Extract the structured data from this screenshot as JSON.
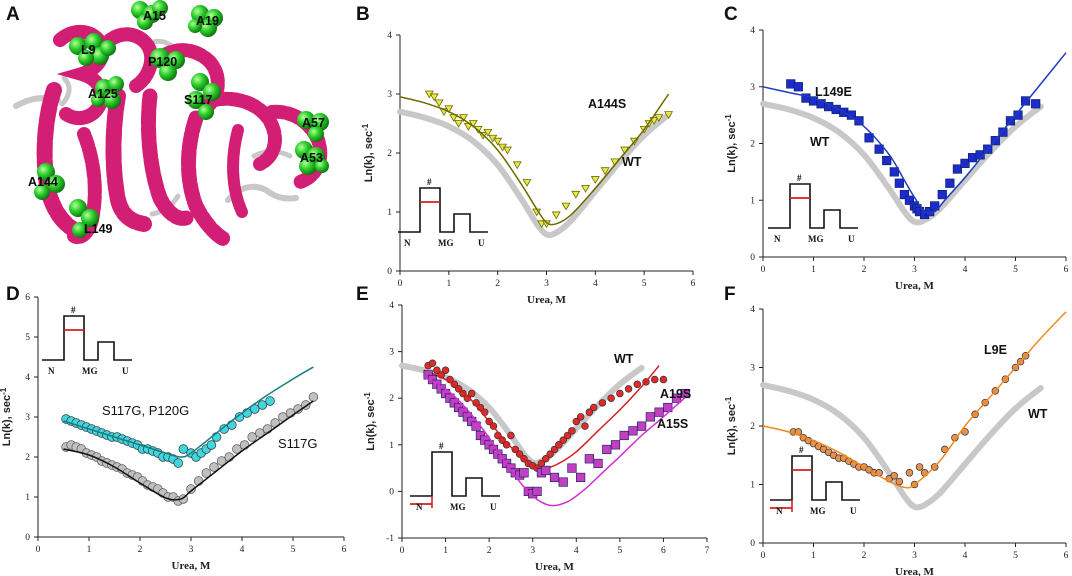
{
  "figure_panels": {
    "a": "A",
    "b": "B",
    "c": "C",
    "d": "D",
    "e": "E",
    "f": "F"
  },
  "structure": {
    "residues": [
      "A15",
      "A19",
      "L9",
      "P120",
      "A125",
      "S117",
      "A57",
      "A53",
      "A144",
      "L149"
    ]
  },
  "inset": {
    "transition": "#",
    "native": "N",
    "molten_globule": "MG",
    "unfolded": "U"
  },
  "colors": {
    "helix": "#d21f75",
    "loop": "#c8c8c8",
    "sphere": "#1fbf1f",
    "wt": "#c8c8c8",
    "b": "#6b6b00",
    "b_fill": "#e8e84a",
    "c": "#1e3cbe",
    "c_fill": "#1c2cc8",
    "d_top": "#1a7f7f",
    "d_top_fill": "#3fd6e0",
    "d_bot": "#111111",
    "d_bot_fill": "#c0c0c0",
    "e_red": "#d42020",
    "e_red_fill": "#e02b2b",
    "e_mag": "#d030d0",
    "e_mag_fill": "#c040c0",
    "f": "#f08a20",
    "f_fill": "#e89050",
    "inset_red": "#d42020"
  },
  "chart_data": [
    {
      "panel": "B",
      "type": "scatter",
      "xlabel": "Urea, M",
      "ylabel": "Ln(k), sec",
      "xlim": [
        0,
        6
      ],
      "ylim": [
        0,
        4
      ],
      "xticks": [
        "0",
        "1",
        "2",
        "3",
        "4",
        "5",
        "6"
      ],
      "yticks": [
        "0",
        "1",
        "2",
        "3",
        "4"
      ],
      "series": [
        {
          "name": "A144S",
          "marker": "triangle-down",
          "x": [
            0.6,
            0.7,
            0.8,
            0.9,
            1.0,
            1.1,
            1.2,
            1.3,
            1.4,
            1.5,
            1.6,
            1.7,
            1.8,
            1.9,
            2.0,
            2.1,
            2.2,
            2.4,
            2.6,
            2.8,
            2.9,
            3.0,
            3.2,
            3.4,
            3.6,
            3.8,
            4.0,
            4.2,
            4.4,
            4.6,
            4.8,
            5.0,
            5.1,
            5.2,
            5.3,
            5.5
          ],
          "y": [
            3.0,
            2.95,
            2.85,
            2.7,
            2.75,
            2.6,
            2.5,
            2.6,
            2.45,
            2.5,
            2.4,
            2.3,
            2.35,
            2.25,
            2.2,
            2.1,
            2.05,
            1.8,
            1.5,
            1.0,
            0.8,
            0.8,
            0.95,
            1.1,
            1.3,
            1.4,
            1.55,
            1.7,
            1.85,
            2.05,
            2.2,
            2.4,
            2.5,
            2.55,
            2.6,
            2.65
          ],
          "fit_x": [
            0,
            0.5,
            1.0,
            1.5,
            2.0,
            2.5,
            2.8,
            3.0,
            3.2,
            3.5,
            4.0,
            4.5,
            5.0,
            5.5
          ],
          "fit_y": [
            2.95,
            2.85,
            2.7,
            2.45,
            2.05,
            1.45,
            1.05,
            0.82,
            0.8,
            0.95,
            1.4,
            1.9,
            2.4,
            3.0
          ]
        },
        {
          "name": "WT",
          "style": "thick-gray",
          "x": [
            0,
            0.5,
            1.0,
            1.5,
            2.0,
            2.5,
            2.8,
            3.0,
            3.2,
            3.5,
            4.0,
            4.5,
            5.0,
            5.5
          ],
          "y": [
            2.7,
            2.6,
            2.45,
            2.2,
            1.8,
            1.2,
            0.8,
            0.62,
            0.65,
            0.85,
            1.35,
            1.85,
            2.3,
            2.65
          ]
        }
      ]
    },
    {
      "panel": "C",
      "type": "scatter",
      "xlabel": "Urea, M",
      "ylabel": "Ln(k), sec",
      "xlim": [
        0,
        6
      ],
      "ylim": [
        0,
        4
      ],
      "xticks": [
        "0",
        "1",
        "2",
        "3",
        "4",
        "5",
        "6"
      ],
      "yticks": [
        "0",
        "1",
        "2",
        "3",
        "4"
      ],
      "series": [
        {
          "name": "L149E",
          "marker": "square",
          "x": [
            0.55,
            0.7,
            0.85,
            1.0,
            1.15,
            1.3,
            1.45,
            1.6,
            1.75,
            1.9,
            2.1,
            2.3,
            2.45,
            2.6,
            2.7,
            2.8,
            2.9,
            3.0,
            3.05,
            3.1,
            3.2,
            3.3,
            3.4,
            3.55,
            3.7,
            3.85,
            4.0,
            4.15,
            4.3,
            4.45,
            4.6,
            4.75,
            4.9,
            5.05,
            5.2,
            5.4
          ],
          "y": [
            3.05,
            3.0,
            2.8,
            2.75,
            2.7,
            2.65,
            2.6,
            2.55,
            2.5,
            2.4,
            2.1,
            1.9,
            1.7,
            1.5,
            1.3,
            1.1,
            1.0,
            0.9,
            0.85,
            0.8,
            0.75,
            0.8,
            0.9,
            1.1,
            1.3,
            1.55,
            1.65,
            1.75,
            1.8,
            1.9,
            2.05,
            2.2,
            2.4,
            2.5,
            2.75,
            2.7
          ],
          "fit_x": [
            0,
            0.5,
            1.0,
            1.5,
            2.0,
            2.5,
            2.8,
            3.0,
            3.2,
            3.4,
            3.6,
            4.0,
            4.5,
            5.0,
            5.5,
            6.0
          ],
          "fit_y": [
            3.0,
            2.9,
            2.8,
            2.6,
            2.3,
            1.8,
            1.35,
            1.05,
            0.8,
            0.8,
            1.0,
            1.4,
            1.95,
            2.5,
            3.05,
            3.6
          ]
        },
        {
          "name": "WT",
          "style": "thick-gray",
          "x": [
            0,
            0.5,
            1.0,
            1.5,
            2.0,
            2.5,
            2.8,
            3.0,
            3.2,
            3.5,
            4.0,
            4.5,
            5.0,
            5.5
          ],
          "y": [
            2.7,
            2.6,
            2.45,
            2.2,
            1.8,
            1.2,
            0.8,
            0.62,
            0.65,
            0.85,
            1.35,
            1.85,
            2.3,
            2.65
          ]
        }
      ]
    },
    {
      "panel": "D",
      "type": "scatter",
      "xlabel": "Urea, M",
      "ylabel": "Ln(k), sec",
      "xlim": [
        0,
        6
      ],
      "ylim": [
        0,
        6
      ],
      "xticks": [
        "0",
        "1",
        "2",
        "3",
        "4",
        "5",
        "6"
      ],
      "yticks": [
        "0",
        "1",
        "2",
        "3",
        "4",
        "5",
        "6"
      ],
      "series": [
        {
          "name": "S117G, P120G",
          "marker": "circle",
          "x": [
            0.55,
            0.65,
            0.75,
            0.85,
            0.95,
            1.05,
            1.15,
            1.25,
            1.35,
            1.45,
            1.55,
            1.65,
            1.75,
            1.85,
            1.95,
            2.05,
            2.15,
            2.25,
            2.35,
            2.45,
            2.55,
            2.65,
            2.75,
            2.85,
            3.0,
            3.1,
            3.2,
            3.3,
            3.4,
            3.5,
            3.65,
            3.8,
            3.95,
            4.1,
            4.25,
            4.4,
            4.55
          ],
          "y": [
            2.95,
            2.9,
            2.85,
            2.8,
            2.75,
            2.7,
            2.65,
            2.6,
            2.55,
            2.5,
            2.5,
            2.45,
            2.4,
            2.35,
            2.3,
            2.2,
            2.2,
            2.15,
            2.1,
            2.0,
            2.0,
            1.95,
            1.85,
            2.2,
            2.1,
            2.0,
            2.1,
            2.2,
            2.3,
            2.5,
            2.7,
            2.8,
            3.0,
            3.1,
            3.2,
            3.3,
            3.4
          ],
          "fit_x": [
            0.5,
            1.0,
            1.5,
            2.0,
            2.5,
            2.8,
            3.0,
            3.5,
            4.0,
            4.5,
            5.0,
            5.4
          ],
          "fit_y": [
            2.9,
            2.7,
            2.5,
            2.3,
            2.1,
            2.0,
            2.1,
            2.6,
            3.1,
            3.55,
            3.95,
            4.25
          ]
        },
        {
          "name": "S117G",
          "marker": "circle",
          "x": [
            0.55,
            0.65,
            0.75,
            0.85,
            0.95,
            1.05,
            1.15,
            1.25,
            1.35,
            1.45,
            1.55,
            1.65,
            1.75,
            1.85,
            1.95,
            2.05,
            2.15,
            2.25,
            2.35,
            2.45,
            2.55,
            2.65,
            2.75,
            2.85,
            3.0,
            3.15,
            3.3,
            3.45,
            3.6,
            3.75,
            3.9,
            4.05,
            4.2,
            4.35,
            4.5,
            4.65,
            4.8,
            4.95,
            5.1,
            5.25,
            5.4
          ],
          "y": [
            2.25,
            2.3,
            2.25,
            2.2,
            2.1,
            2.05,
            2.0,
            1.9,
            1.85,
            1.8,
            1.75,
            1.7,
            1.6,
            1.55,
            1.5,
            1.4,
            1.3,
            1.25,
            1.2,
            1.1,
            1.0,
            1.0,
            0.9,
            0.95,
            1.2,
            1.4,
            1.6,
            1.75,
            1.9,
            2.0,
            2.2,
            2.3,
            2.5,
            2.6,
            2.7,
            2.85,
            3.0,
            3.1,
            3.2,
            3.3,
            3.5
          ],
          "fit_x": [
            0.5,
            1.0,
            1.5,
            2.0,
            2.5,
            2.8,
            3.0,
            3.5,
            4.0,
            4.5,
            5.0,
            5.4
          ],
          "fit_y": [
            2.2,
            2.05,
            1.75,
            1.35,
            0.98,
            0.95,
            1.15,
            1.65,
            2.15,
            2.6,
            3.05,
            3.4
          ]
        }
      ]
    },
    {
      "panel": "E",
      "type": "scatter",
      "xlabel": "Urea, M",
      "ylabel": "Ln(k), sec",
      "xlim": [
        0,
        7
      ],
      "ylim": [
        -1,
        4
      ],
      "xticks": [
        "0",
        "1",
        "2",
        "3",
        "4",
        "5",
        "6",
        "7"
      ],
      "yticks": [
        "-1",
        "0",
        "1",
        "2",
        "3",
        "4"
      ],
      "series": [
        {
          "name": "WT",
          "style": "thick-gray",
          "x": [
            0,
            0.5,
            1.0,
            1.5,
            2.0,
            2.5,
            2.8,
            3.0,
            3.2,
            3.5,
            4.0,
            4.5,
            5.0,
            5.5
          ],
          "y": [
            2.7,
            2.6,
            2.45,
            2.2,
            1.8,
            1.2,
            0.8,
            0.62,
            0.65,
            0.85,
            1.35,
            1.85,
            2.3,
            2.65
          ]
        },
        {
          "name": "A19S",
          "marker": "circle",
          "x": [
            0.6,
            0.7,
            0.8,
            0.9,
            1.0,
            1.1,
            1.2,
            1.3,
            1.4,
            1.5,
            1.6,
            1.7,
            1.8,
            1.9,
            2.0,
            2.1,
            2.2,
            2.3,
            2.4,
            2.5,
            2.6,
            2.7,
            2.8,
            2.9,
            3.0,
            3.1,
            3.2,
            3.3,
            3.4,
            3.5,
            3.6,
            3.7,
            3.8,
            3.9,
            4.0,
            4.1,
            4.2,
            4.3,
            4.4,
            4.6,
            4.8,
            5.0,
            5.2,
            5.4,
            5.6,
            5.8,
            6.0
          ],
          "y": [
            2.7,
            2.75,
            2.6,
            2.5,
            2.6,
            2.4,
            2.3,
            2.2,
            2.1,
            2.0,
            2.1,
            1.9,
            1.8,
            1.7,
            1.5,
            1.4,
            1.2,
            1.1,
            1.0,
            1.2,
            0.9,
            0.8,
            0.7,
            0.6,
            0.55,
            0.5,
            0.6,
            0.7,
            0.8,
            0.9,
            1.0,
            1.1,
            1.2,
            1.3,
            1.5,
            1.6,
            1.4,
            1.7,
            1.8,
            1.9,
            2.0,
            2.1,
            2.2,
            2.3,
            2.35,
            2.4,
            2.4
          ],
          "fit_x": [
            0.5,
            1.0,
            1.5,
            2.0,
            2.5,
            3.0,
            3.3,
            3.6,
            4.0,
            4.5,
            5.0,
            5.5,
            5.9
          ],
          "fit_y": [
            2.6,
            2.4,
            2.05,
            1.5,
            0.95,
            0.55,
            0.5,
            0.6,
            0.85,
            1.3,
            1.75,
            2.25,
            2.7
          ]
        },
        {
          "name": "A15S",
          "marker": "square",
          "x": [
            0.6,
            0.7,
            0.8,
            0.9,
            1.0,
            1.1,
            1.2,
            1.3,
            1.4,
            1.5,
            1.6,
            1.7,
            1.8,
            1.9,
            2.0,
            2.1,
            2.2,
            2.3,
            2.4,
            2.5,
            2.6,
            2.7,
            2.8,
            2.9,
            3.0,
            3.1,
            3.2,
            3.3,
            3.5,
            3.7,
            3.9,
            4.1,
            4.3,
            4.5,
            4.7,
            4.9,
            5.1,
            5.3,
            5.5,
            5.7,
            5.9,
            6.1,
            6.3,
            6.5
          ],
          "y": [
            2.5,
            2.4,
            2.3,
            2.2,
            2.1,
            2.0,
            1.9,
            1.8,
            1.7,
            1.6,
            1.5,
            1.4,
            1.2,
            1.1,
            1.0,
            0.9,
            0.8,
            0.7,
            0.6,
            0.5,
            0.4,
            0.35,
            0.4,
            0.0,
            -0.05,
            0.0,
            0.4,
            0.45,
            0.3,
            0.2,
            0.5,
            0.3,
            0.7,
            0.6,
            0.9,
            1.0,
            1.2,
            1.3,
            1.4,
            1.6,
            1.7,
            1.8,
            2.0,
            2.1
          ],
          "fit_x": [
            0.5,
            1.0,
            1.5,
            2.0,
            2.5,
            3.0,
            3.4,
            3.8,
            4.2,
            4.6,
            5.0,
            5.5,
            6.0,
            6.6
          ],
          "fit_y": [
            2.45,
            2.2,
            1.75,
            1.15,
            0.45,
            -0.1,
            -0.3,
            -0.22,
            0.05,
            0.4,
            0.75,
            1.2,
            1.6,
            2.1
          ]
        }
      ]
    },
    {
      "panel": "F",
      "type": "scatter",
      "xlabel": "Urea, M",
      "ylabel": "Ln(k), sec",
      "xlim": [
        0,
        6
      ],
      "ylim": [
        0,
        4
      ],
      "xticks": [
        "0",
        "1",
        "2",
        "3",
        "4",
        "5",
        "6"
      ],
      "yticks": [
        "0",
        "1",
        "2",
        "3",
        "4"
      ],
      "series": [
        {
          "name": "WT",
          "style": "thick-gray",
          "x": [
            0,
            0.5,
            1.0,
            1.5,
            2.0,
            2.5,
            2.8,
            3.0,
            3.2,
            3.5,
            4.0,
            4.5,
            5.0,
            5.5
          ],
          "y": [
            2.7,
            2.6,
            2.45,
            2.2,
            1.8,
            1.2,
            0.8,
            0.62,
            0.65,
            0.85,
            1.35,
            1.85,
            2.3,
            2.65
          ]
        },
        {
          "name": "L9E",
          "marker": "circle",
          "x": [
            0.6,
            0.7,
            0.8,
            0.9,
            1.0,
            1.1,
            1.2,
            1.3,
            1.4,
            1.5,
            1.6,
            1.7,
            1.8,
            1.9,
            2.0,
            2.1,
            2.2,
            2.3,
            2.5,
            2.6,
            2.7,
            2.9,
            3.0,
            3.1,
            3.2,
            3.4,
            3.6,
            3.8,
            4.0,
            4.2,
            4.4,
            4.6,
            4.8,
            5.0,
            5.1,
            5.2
          ],
          "y": [
            1.9,
            1.9,
            1.8,
            1.75,
            1.7,
            1.65,
            1.6,
            1.55,
            1.5,
            1.45,
            1.45,
            1.4,
            1.35,
            1.3,
            1.3,
            1.25,
            1.2,
            1.2,
            1.1,
            1.15,
            1.05,
            1.2,
            1.0,
            1.3,
            1.2,
            1.3,
            1.6,
            1.8,
            1.9,
            2.2,
            2.4,
            2.6,
            2.8,
            3.0,
            3.1,
            3.2
          ],
          "fit_x": [
            0,
            0.5,
            1.0,
            1.5,
            2.0,
            2.5,
            2.8,
            3.0,
            3.5,
            4.0,
            4.5,
            5.0,
            5.5,
            6.0
          ],
          "fit_y": [
            2.0,
            1.9,
            1.75,
            1.55,
            1.3,
            1.05,
            0.95,
            1.0,
            1.4,
            2.0,
            2.5,
            3.0,
            3.5,
            3.95
          ]
        }
      ]
    }
  ]
}
